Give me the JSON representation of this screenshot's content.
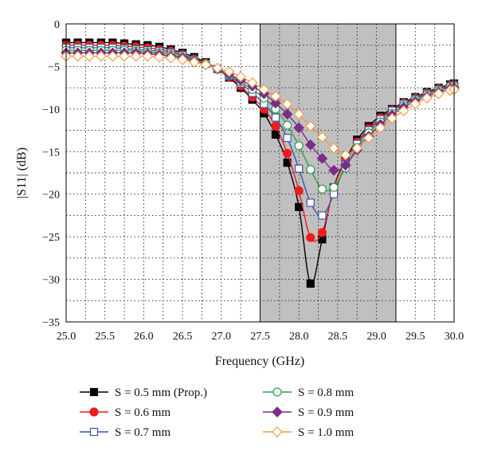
{
  "chart_data": {
    "type": "line",
    "xlabel": "Frequency (GHz)",
    "ylabel": "|S11| (dB)",
    "xlim": [
      25.0,
      30.0
    ],
    "ylim": [
      -35,
      0
    ],
    "x_ticks": [
      "25.0",
      "25.5",
      "26.0",
      "26.5",
      "27.0",
      "27.5",
      "28.0",
      "28.5",
      "29.0",
      "29.5",
      "30.0"
    ],
    "y_ticks": [
      "0",
      "-5",
      "-10",
      "-15",
      "-20",
      "-25",
      "-30",
      "-35"
    ],
    "grid": "dotted",
    "shaded_band": {
      "x0": 27.5,
      "x1": 29.25,
      "color": "#c0c0c0"
    },
    "legend_position": "bottom",
    "series": [
      {
        "name": "S = 0.5 mm (Prop.)",
        "color": "#000000",
        "marker": "filled-square",
        "x": [
          25.0,
          25.15,
          25.3,
          25.45,
          25.6,
          25.75,
          25.9,
          26.05,
          26.2,
          26.35,
          26.5,
          26.65,
          26.8,
          26.95,
          27.1,
          27.25,
          27.4,
          27.55,
          27.7,
          27.85,
          28.0,
          28.15,
          28.3,
          28.45,
          28.6,
          28.75,
          28.9,
          29.05,
          29.2,
          29.35,
          29.5,
          29.65,
          29.8,
          29.95,
          30.0
        ],
        "y": [
          -2.2,
          -2.2,
          -2.2,
          -2.2,
          -2.2,
          -2.3,
          -2.4,
          -2.5,
          -2.7,
          -3.0,
          -3.4,
          -3.9,
          -4.5,
          -5.3,
          -6.3,
          -7.5,
          -8.9,
          -10.5,
          -13.0,
          -16.3,
          -21.5,
          -30.5,
          -25.3,
          -19.2,
          -16.0,
          -13.6,
          -12.0,
          -10.8,
          -10.0,
          -9.2,
          -8.6,
          -8.0,
          -7.5,
          -7.1,
          -7.0
        ]
      },
      {
        "name": "S = 0.6 mm",
        "color": "#ee1c1c",
        "marker": "filled-circle",
        "x": [
          25.0,
          25.15,
          25.3,
          25.45,
          25.6,
          25.75,
          25.9,
          26.05,
          26.2,
          26.35,
          26.5,
          26.65,
          26.8,
          26.95,
          27.1,
          27.25,
          27.4,
          27.55,
          27.7,
          27.85,
          28.0,
          28.15,
          28.3,
          28.45,
          28.6,
          28.75,
          28.9,
          29.05,
          29.2,
          29.35,
          29.5,
          29.65,
          29.8,
          29.95,
          30.0
        ],
        "y": [
          -2.5,
          -2.5,
          -2.5,
          -2.5,
          -2.5,
          -2.6,
          -2.7,
          -2.8,
          -3.0,
          -3.2,
          -3.6,
          -4.1,
          -4.6,
          -5.3,
          -6.2,
          -7.3,
          -8.6,
          -10.0,
          -12.0,
          -15.2,
          -19.6,
          -25.1,
          -24.5,
          -19.3,
          -16.1,
          -13.9,
          -12.3,
          -11.0,
          -10.1,
          -9.3,
          -8.7,
          -8.1,
          -7.6,
          -7.2,
          -7.1
        ]
      },
      {
        "name": "S = 0.7 mm",
        "color": "#3a56a8",
        "marker": "open-square",
        "x": [
          25.0,
          25.15,
          25.3,
          25.45,
          25.6,
          25.75,
          25.9,
          26.05,
          26.2,
          26.35,
          26.5,
          26.65,
          26.8,
          26.95,
          27.1,
          27.25,
          27.4,
          27.55,
          27.7,
          27.85,
          28.0,
          28.15,
          28.3,
          28.45,
          28.6,
          28.75,
          28.9,
          29.05,
          29.2,
          29.35,
          29.5,
          29.65,
          29.8,
          29.95,
          30.0
        ],
        "y": [
          -2.8,
          -2.8,
          -2.8,
          -2.8,
          -2.8,
          -2.9,
          -3.0,
          -3.1,
          -3.2,
          -3.4,
          -3.7,
          -4.2,
          -4.7,
          -5.3,
          -6.1,
          -7.0,
          -8.1,
          -9.4,
          -11.0,
          -13.4,
          -17.0,
          -21.0,
          -22.5,
          -20.0,
          -16.5,
          -14.1,
          -12.5,
          -11.2,
          -10.2,
          -9.4,
          -8.8,
          -8.2,
          -7.7,
          -7.3,
          -7.2
        ]
      },
      {
        "name": "S = 0.8 mm",
        "color": "#2e9e48",
        "marker": "open-circle",
        "x": [
          25.0,
          25.15,
          25.3,
          25.45,
          25.6,
          25.75,
          25.9,
          26.05,
          26.2,
          26.35,
          26.5,
          26.65,
          26.8,
          26.95,
          27.1,
          27.25,
          27.4,
          27.55,
          27.7,
          27.85,
          28.0,
          28.15,
          28.3,
          28.45,
          28.6,
          28.75,
          28.9,
          29.05,
          29.2,
          29.35,
          29.5,
          29.65,
          29.8,
          29.95,
          30.0
        ],
        "y": [
          -3.1,
          -3.1,
          -3.1,
          -3.1,
          -3.1,
          -3.1,
          -3.2,
          -3.3,
          -3.4,
          -3.6,
          -3.9,
          -4.3,
          -4.7,
          -5.3,
          -6.0,
          -6.8,
          -7.7,
          -8.7,
          -10.0,
          -11.9,
          -14.3,
          -17.1,
          -19.4,
          -19.2,
          -16.9,
          -14.5,
          -12.8,
          -11.5,
          -10.5,
          -9.6,
          -8.9,
          -8.3,
          -7.8,
          -7.4,
          -7.3
        ]
      },
      {
        "name": "S = 0.9 mm",
        "color": "#7a2e86",
        "marker": "filled-diamond",
        "x": [
          25.0,
          25.15,
          25.3,
          25.45,
          25.6,
          25.75,
          25.9,
          26.05,
          26.2,
          26.35,
          26.5,
          26.65,
          26.8,
          26.95,
          27.1,
          27.25,
          27.4,
          27.55,
          27.7,
          27.85,
          28.0,
          28.15,
          28.3,
          28.45,
          28.6,
          28.75,
          28.9,
          29.05,
          29.2,
          29.35,
          29.5,
          29.65,
          29.8,
          29.95,
          30.0
        ],
        "y": [
          -3.4,
          -3.4,
          -3.4,
          -3.4,
          -3.4,
          -3.4,
          -3.4,
          -3.5,
          -3.6,
          -3.8,
          -4.0,
          -4.4,
          -4.8,
          -5.3,
          -5.9,
          -6.6,
          -7.3,
          -8.2,
          -9.3,
          -10.6,
          -12.2,
          -14.2,
          -15.8,
          -17.2,
          -16.6,
          -14.8,
          -13.2,
          -11.8,
          -10.7,
          -9.8,
          -9.1,
          -8.5,
          -8.0,
          -7.6,
          -7.5
        ]
      },
      {
        "name": "S = 1.0 mm",
        "color": "#f39c4a",
        "marker": "open-diamond",
        "x": [
          25.0,
          25.15,
          25.3,
          25.45,
          25.6,
          25.75,
          25.9,
          26.05,
          26.2,
          26.35,
          26.5,
          26.65,
          26.8,
          26.95,
          27.1,
          27.25,
          27.4,
          27.55,
          27.7,
          27.85,
          28.0,
          28.15,
          28.3,
          28.45,
          28.6,
          28.75,
          28.9,
          29.05,
          29.2,
          29.35,
          29.5,
          29.65,
          29.8,
          29.95,
          30.0
        ],
        "y": [
          -3.8,
          -3.8,
          -3.8,
          -3.8,
          -3.8,
          -3.8,
          -3.8,
          -3.8,
          -3.9,
          -4.0,
          -4.2,
          -4.5,
          -4.8,
          -5.2,
          -5.6,
          -6.2,
          -6.9,
          -7.7,
          -8.5,
          -9.4,
          -10.6,
          -12.0,
          -13.3,
          -14.6,
          -15.4,
          -14.6,
          -13.4,
          -12.2,
          -11.1,
          -10.2,
          -9.4,
          -8.7,
          -8.2,
          -7.8,
          -7.7
        ]
      }
    ]
  }
}
